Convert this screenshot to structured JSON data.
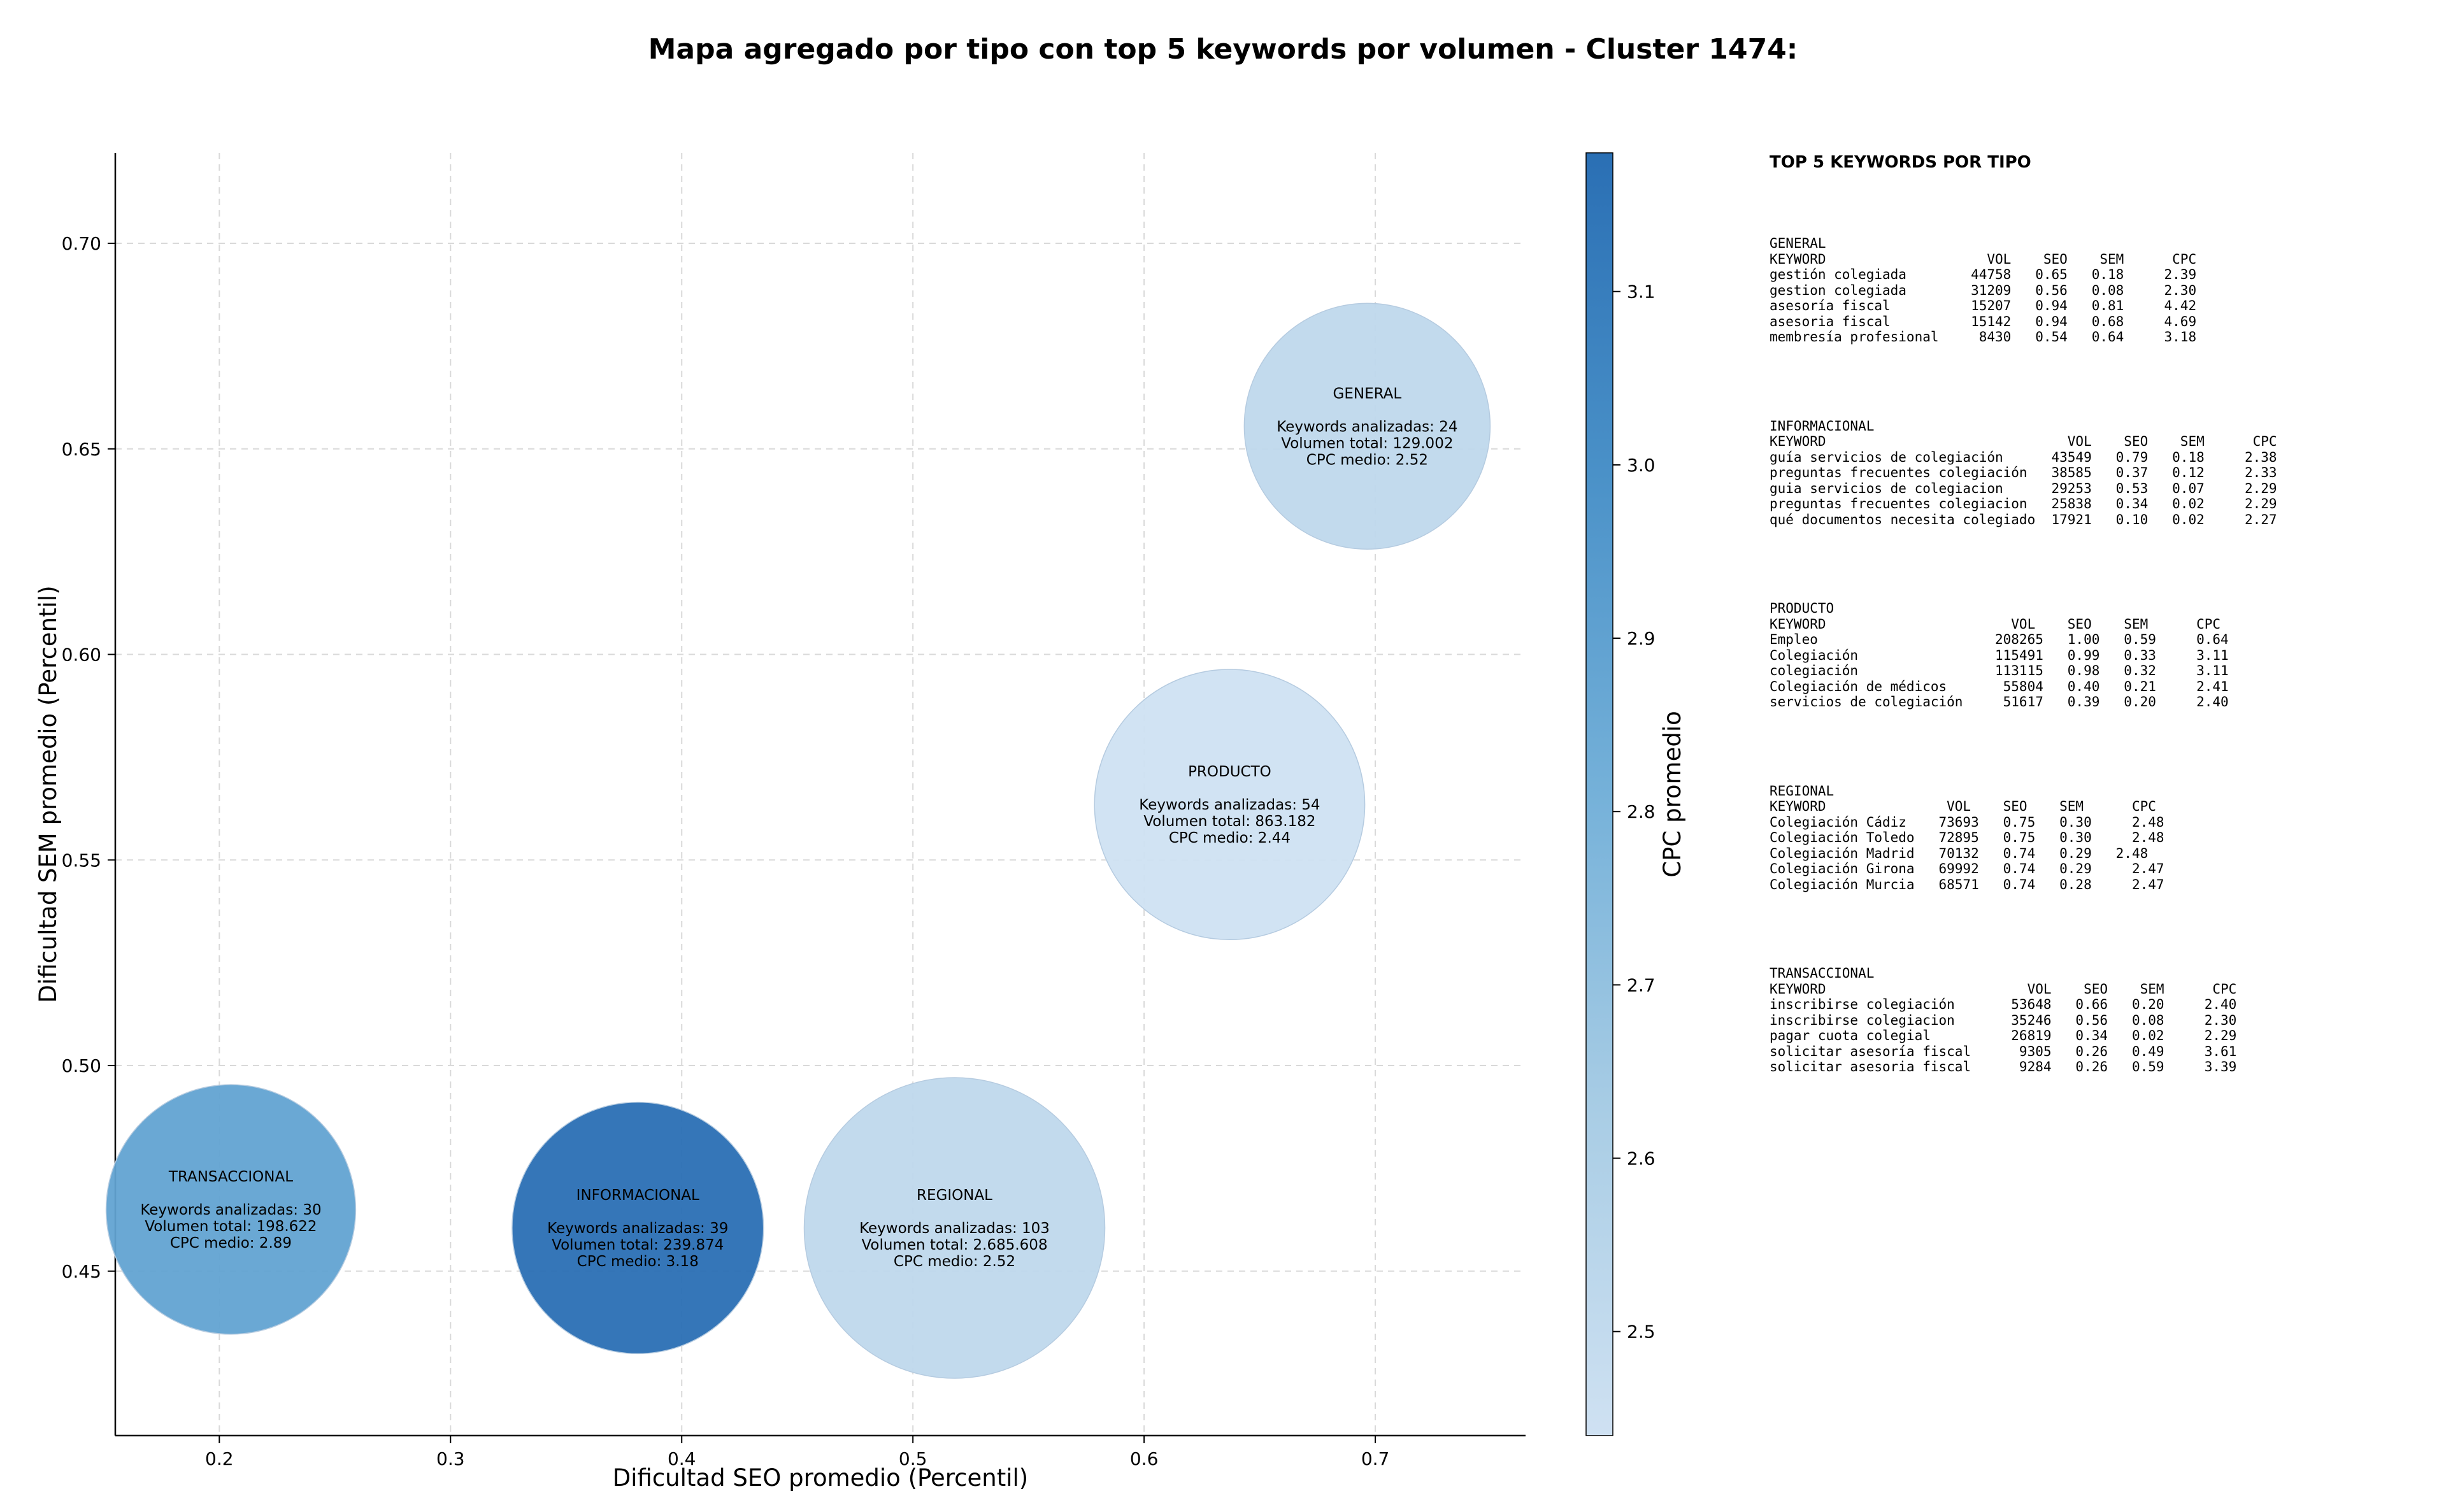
{
  "title": "Mapa agregado por tipo con top 5 keywords por volumen - Cluster 1474:",
  "chart_data": {
    "type": "scatter",
    "subtype": "bubble",
    "xlabel": "Dificultad SEO promedio (Percentil)",
    "ylabel": "Dificultad SEM promedio (Percentil)",
    "xlim": [
      0.155,
      0.765
    ],
    "ylim": [
      0.41,
      0.722
    ],
    "xticks": [
      0.2,
      0.3,
      0.4,
      0.5,
      0.6,
      0.7
    ],
    "yticks": [
      0.45,
      0.5,
      0.55,
      0.6,
      0.65,
      0.7
    ],
    "xtick_labels": [
      "0.2",
      "0.3",
      "0.4",
      "0.5",
      "0.6",
      "0.7"
    ],
    "ytick_labels": [
      "0.45",
      "0.50",
      "0.55",
      "0.60",
      "0.65",
      "0.70"
    ],
    "grid": true,
    "size_encoding": "Volumen total",
    "color_encoding": "CPC medio",
    "colorbar": {
      "label": "CPC promedio",
      "min": 2.44,
      "max": 3.18,
      "ticks": [
        2.5,
        2.6,
        2.7,
        2.8,
        2.9,
        3.0,
        3.1
      ],
      "tick_labels": [
        "2.5",
        "2.6",
        "2.7",
        "2.8",
        "2.9",
        "3.0",
        "3.1"
      ],
      "colormap": "Blues",
      "color_low": "#c6dbef",
      "color_high": "#2a6fb4"
    },
    "points": [
      {
        "name": "TRANSACCIONAL",
        "x": 0.205,
        "y": 0.465,
        "keywords": 30,
        "volume": 198622,
        "cpc": 2.89,
        "lines": [
          "Keywords analizadas: 30",
          "Volumen total: 198.622",
          "CPC medio: 2.89"
        ]
      },
      {
        "name": "INFORMACIONAL",
        "x": 0.381,
        "y": 0.4605,
        "keywords": 39,
        "volume": 239874,
        "cpc": 3.18,
        "lines": [
          "Keywords analizadas: 39",
          "Volumen total: 239.874",
          "CPC medio: 3.18"
        ]
      },
      {
        "name": "REGIONAL",
        "x": 0.518,
        "y": 0.4605,
        "keywords": 103,
        "volume": 2685608,
        "cpc": 2.52,
        "lines": [
          "Keywords analizadas: 103",
          "Volumen total: 2.685.608",
          "CPC medio: 2.52"
        ]
      },
      {
        "name": "PRODUCTO",
        "x": 0.637,
        "y": 0.5635,
        "keywords": 54,
        "volume": 863182,
        "cpc": 2.44,
        "lines": [
          "Keywords analizadas: 54",
          "Volumen total: 863.182",
          "CPC medio: 2.44"
        ]
      },
      {
        "name": "GENERAL",
        "x": 0.6965,
        "y": 0.6555,
        "keywords": 24,
        "volume": 129002,
        "cpc": 2.52,
        "lines": [
          "Keywords analizadas: 24",
          "Volumen total: 129.002",
          "CPC medio: 2.52"
        ]
      }
    ]
  },
  "side_panel": {
    "title": "TOP 5 KEYWORDS POR TIPO",
    "blocks": [
      {
        "type": "GENERAL",
        "text": "GENERAL\nKEYWORD                    VOL    SEO    SEM      CPC\ngestión colegiada        44758   0.65   0.18     2.39\ngestion colegiada        31209   0.56   0.08     2.30\nasesoría fiscal          15207   0.94   0.81     4.42\nasesoria fiscal          15142   0.94   0.68     4.69\nmembresía profesional     8430   0.54   0.64     3.18"
      },
      {
        "type": "INFORMACIONAL",
        "text": "INFORMACIONAL\nKEYWORD                              VOL    SEO    SEM      CPC\nguía servicios de colegiación      43549   0.79   0.18     2.38\npreguntas frecuentes colegiación   38585   0.37   0.12     2.33\nguia servicios de colegiacion      29253   0.53   0.07     2.29\npreguntas frecuentes colegiacion   25838   0.34   0.02     2.29\nqué documentos necesita colegiado  17921   0.10   0.02     2.27"
      },
      {
        "type": "PRODUCTO",
        "text": "PRODUCTO\nKEYWORD                       VOL    SEO    SEM      CPC\nEmpleo                      208265   1.00   0.59     0.64\nColegiación                 115491   0.99   0.33     3.11\ncolegiación                 113115   0.98   0.32     3.11\nColegiación de médicos       55804   0.40   0.21     2.41\nservicios de colegiación     51617   0.39   0.20     2.40"
      },
      {
        "type": "REGIONAL",
        "text": "REGIONAL\nKEYWORD               VOL    SEO    SEM      CPC\nColegiación Cádiz    73693   0.75   0.30     2.48\nColegiación Toledo   72895   0.75   0.30     2.48\nColegiación Madrid   70132   0.74   0.29   2.48\nColegiación Girona   69992   0.74   0.29     2.47\nColegiación Murcia   68571   0.74   0.28     2.47"
      },
      {
        "type": "TRANSACCIONAL",
        "text": "TRANSACCIONAL\nKEYWORD                         VOL    SEO    SEM      CPC\ninscribirse colegiación       53648   0.66   0.20     2.40\ninscribirse colegiacion       35246   0.56   0.08     2.30\npagar cuota colegial          26819   0.34   0.02     2.29\nsolicitar asesoría fiscal      9305   0.26   0.49     3.61\nsolicitar asesoria fiscal      9284   0.26   0.59     3.39"
      }
    ]
  }
}
